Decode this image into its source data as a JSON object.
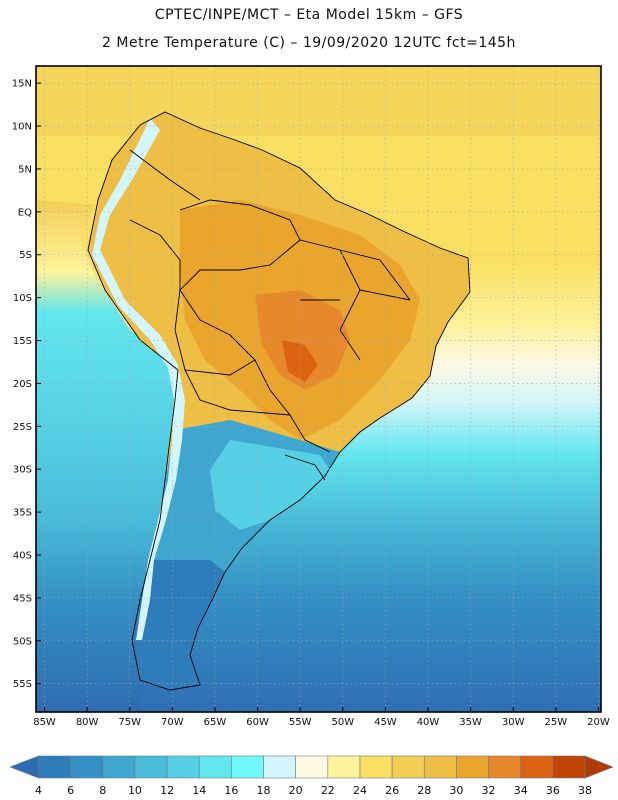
{
  "title_line1": "CPTEC/INPE/MCT –  Eta Model 15km – GFS",
  "title_line2": "2 Metre Temperature (C) – 19/09/2020 12UTC fct=145h",
  "lat_labels": [
    "15N",
    "10N",
    "5N",
    "EQ",
    "5S",
    "10S",
    "15S",
    "20S",
    "25S",
    "30S",
    "35S",
    "40S",
    "45S",
    "50S",
    "55S"
  ],
  "lon_labels": [
    "85W",
    "80W",
    "75W",
    "70W",
    "65W",
    "60W",
    "55W",
    "50W",
    "45W",
    "40W",
    "35W",
    "30W",
    "25W",
    "20W"
  ],
  "colorbar": {
    "ticks": [
      "4",
      "6",
      "8",
      "10",
      "12",
      "14",
      "16",
      "18",
      "20",
      "22",
      "24",
      "26",
      "28",
      "30",
      "32",
      "34",
      "36",
      "38"
    ],
    "colors": [
      "#2e6cb0",
      "#2f7cba",
      "#3490c4",
      "#3ea6cf",
      "#49bcd9",
      "#55d0e4",
      "#63e6ee",
      "#6ff9fb",
      "#d2f6fb",
      "#fff9e3",
      "#fef29a",
      "#f9df62",
      "#f3ce55",
      "#efbe45",
      "#eaa52d",
      "#e7882a",
      "#dc6312",
      "#c24406",
      "#b23a05"
    ]
  }
}
